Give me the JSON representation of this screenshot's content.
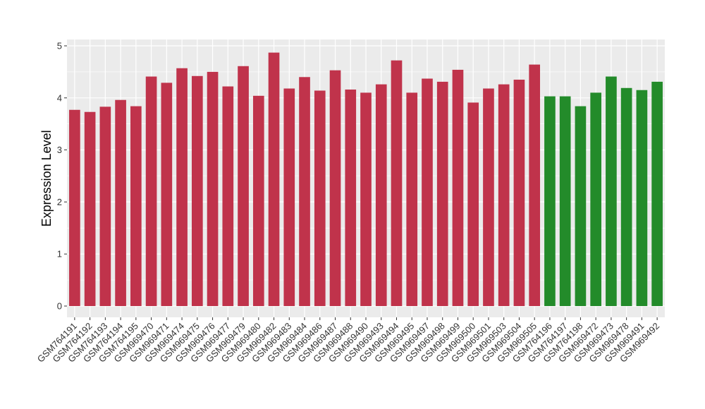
{
  "chart_data": {
    "type": "bar",
    "title": "",
    "xlabel": "",
    "ylabel": "Expression Level",
    "ylim": [
      0,
      5
    ],
    "yticks": [
      0,
      1,
      2,
      3,
      4,
      5
    ],
    "grid": true,
    "categories": [
      "GSM764191",
      "GSM764192",
      "GSM764193",
      "GSM764194",
      "GSM764195",
      "GSM969470",
      "GSM969471",
      "GSM969474",
      "GSM969475",
      "GSM969476",
      "GSM969477",
      "GSM969479",
      "GSM969480",
      "GSM969482",
      "GSM969483",
      "GSM969484",
      "GSM969486",
      "GSM969487",
      "GSM969488",
      "GSM969490",
      "GSM969493",
      "GSM969494",
      "GSM969495",
      "GSM969497",
      "GSM969498",
      "GSM969499",
      "GSM969500",
      "GSM969501",
      "GSM969503",
      "GSM969504",
      "GSM969505",
      "GSM764196",
      "GSM764197",
      "GSM764198",
      "GSM969472",
      "GSM969473",
      "GSM969478",
      "GSM969491",
      "GSM969492"
    ],
    "values": [
      3.77,
      3.73,
      3.83,
      3.96,
      3.84,
      4.41,
      4.29,
      4.57,
      4.42,
      4.5,
      4.22,
      4.61,
      4.04,
      4.87,
      4.18,
      4.4,
      4.14,
      4.53,
      4.16,
      4.1,
      4.26,
      4.72,
      4.1,
      4.37,
      4.31,
      4.54,
      3.91,
      4.18,
      4.26,
      4.35,
      4.64,
      4.03,
      4.03,
      3.84,
      4.1,
      4.41,
      4.19,
      4.15,
      4.31
    ],
    "groups": [
      "a",
      "a",
      "a",
      "a",
      "a",
      "a",
      "a",
      "a",
      "a",
      "a",
      "a",
      "a",
      "a",
      "a",
      "a",
      "a",
      "a",
      "a",
      "a",
      "a",
      "a",
      "a",
      "a",
      "a",
      "a",
      "a",
      "a",
      "a",
      "a",
      "a",
      "a",
      "b",
      "b",
      "b",
      "b",
      "b",
      "b",
      "b",
      "b"
    ],
    "colors": {
      "a": "#c0334b",
      "b": "#238b2a"
    },
    "panel_background": "#ebebeb",
    "gridline_color": "#ffffff"
  }
}
